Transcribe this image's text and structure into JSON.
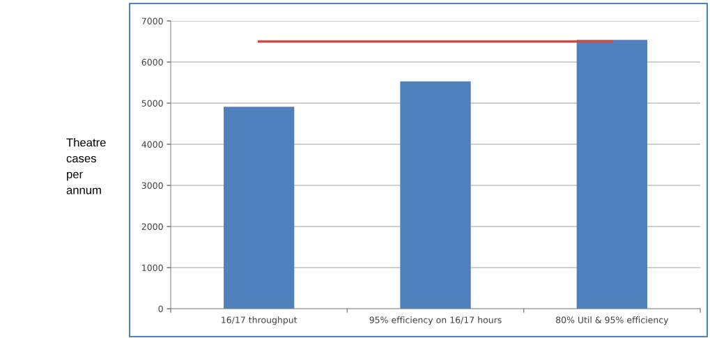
{
  "chart_data": {
    "type": "bar",
    "ylabel": "Theatre\ncases\nper\nannum",
    "categories": [
      "16/17 throughput",
      "95% efficiency on 16/17 hours",
      "80% Util & 95% efficiency"
    ],
    "series": [
      {
        "color": "#4f81bd",
        "values": [
          4910,
          5530,
          6540
        ]
      },
      {
        "type": "line",
        "color": "#c0504d",
        "values": [
          6500,
          6500,
          6500
        ]
      }
    ],
    "ylim": [
      0,
      7000
    ],
    "yticks": [
      0,
      1000,
      2000,
      3000,
      4000,
      5000,
      6000,
      7000
    ],
    "grid": "y",
    "marker": "none",
    "line_style": "solid"
  }
}
